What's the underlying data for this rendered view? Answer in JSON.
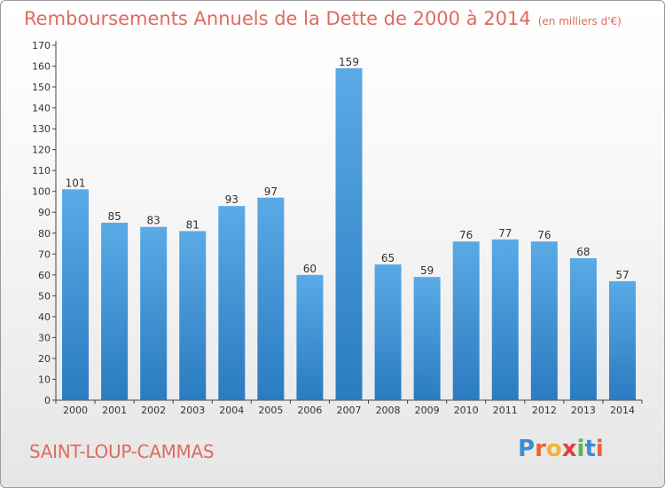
{
  "title": "Remboursements Annuels de la Dette de 2000 à 2014",
  "subtitle": "(en milliers d'€)",
  "city": "SAINT-LOUP-CAMMAS",
  "logo": {
    "letters": [
      "P",
      "r",
      "o",
      "x",
      "i",
      "t",
      "i"
    ],
    "colors": [
      "#3a8ed6",
      "#e8643a",
      "#f2b330",
      "#e04040",
      "#5ab54a",
      "#3a8ed6",
      "#e8643a"
    ]
  },
  "colors": {
    "bar_top": "#5aaae6",
    "bar_bottom": "#2a7bc0",
    "accent": "#e06a5e"
  },
  "chart_data": {
    "type": "bar",
    "title": "Remboursements Annuels de la Dette de 2000 à 2014",
    "subtitle": "(en milliers d'€)",
    "xlabel": "",
    "ylabel": "",
    "categories": [
      "2000",
      "2001",
      "2002",
      "2003",
      "2004",
      "2005",
      "2006",
      "2007",
      "2008",
      "2009",
      "2010",
      "2011",
      "2012",
      "2013",
      "2014"
    ],
    "values": [
      101,
      85,
      83,
      81,
      93,
      97,
      60,
      159,
      65,
      59,
      76,
      77,
      76,
      68,
      57
    ],
    "ylim": [
      0,
      170
    ],
    "yticks": [
      0,
      10,
      20,
      30,
      40,
      50,
      60,
      70,
      80,
      90,
      100,
      110,
      120,
      130,
      140,
      150,
      160,
      170
    ],
    "grid": false,
    "data_labels": true
  }
}
